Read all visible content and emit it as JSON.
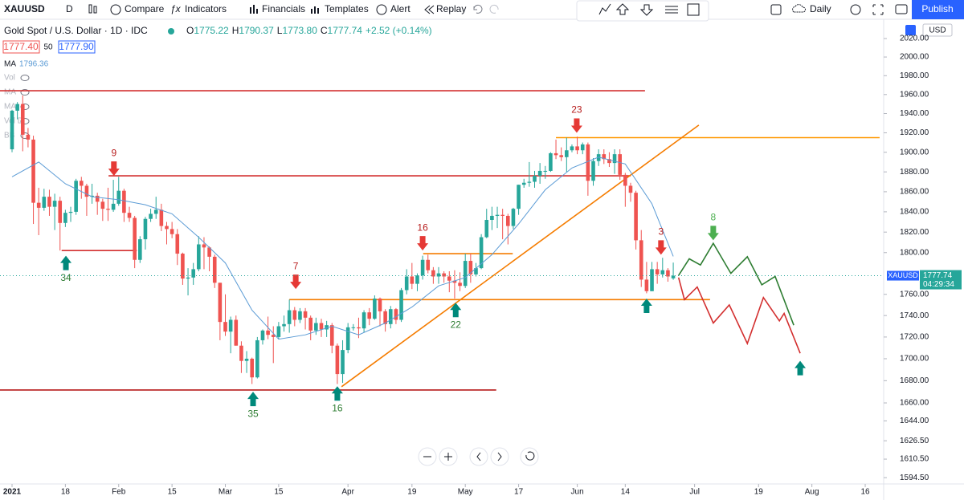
{
  "toolbar": {
    "symbol": "XAUUSD",
    "interval": "D",
    "items": [
      "Compare",
      "Indicators",
      "Financials",
      "Templates",
      "Alert",
      "Replay"
    ],
    "timeframe": "Daily",
    "publish": "Publish"
  },
  "legend": {
    "title": "Gold Spot / U.S. Dollar · 1D · IDC",
    "ohlc": [
      {
        "label": "O",
        "value": "1775.22"
      },
      {
        "label": "H",
        "value": "1790.37"
      },
      {
        "label": "L",
        "value": "1773.80"
      },
      {
        "label": "C",
        "value": "1777.74"
      }
    ],
    "change": "+2.52 (+0.14%)",
    "bid": "1777.40",
    "spread": "50",
    "ask": "1777.90",
    "ma": "MA",
    "ma_value": "1796.36",
    "indicators": [
      "Vol",
      "MA",
      "MA",
      "Vol D",
      "BB"
    ]
  },
  "price_axis": {
    "currency": "USD",
    "symbol_tag": "XAUUSD",
    "price_tag": "1777.74",
    "countdown": "04:29:34"
  },
  "chart_data": {
    "type": "candlestick",
    "log": true,
    "grid": false,
    "up_color": "#26a69a",
    "down_color": "#ef5350",
    "xlim": [
      -2.26,
      163.46
    ],
    "ylim": [
      1589.1,
      2041.1
    ],
    "xticks": [
      {
        "value": 0,
        "label": "2021"
      },
      {
        "value": 10,
        "label": "18"
      },
      {
        "value": 20,
        "label": "Feb"
      },
      {
        "value": 30,
        "label": "15"
      },
      {
        "value": 40,
        "label": "Mar"
      },
      {
        "value": 50,
        "label": "15"
      },
      {
        "value": 63,
        "label": "Apr"
      },
      {
        "value": 75,
        "label": "19"
      },
      {
        "value": 85,
        "label": "May"
      },
      {
        "value": 95,
        "label": "17"
      },
      {
        "value": 106,
        "label": "Jun"
      },
      {
        "value": 115,
        "label": "14"
      },
      {
        "value": 128,
        "label": "Jul"
      },
      {
        "value": 140,
        "label": "19"
      },
      {
        "value": 150,
        "label": "Aug"
      },
      {
        "value": 160,
        "label": "16"
      }
    ],
    "yticks": [
      {
        "value": 2020,
        "label": "2020.00"
      },
      {
        "value": 2000,
        "label": "2000.00"
      },
      {
        "value": 1980,
        "label": "1980.00"
      },
      {
        "value": 1960,
        "label": "1960.00"
      },
      {
        "value": 1940,
        "label": "1940.00"
      },
      {
        "value": 1920,
        "label": "1920.00"
      },
      {
        "value": 1900,
        "label": "1900.00"
      },
      {
        "value": 1880,
        "label": "1880.00"
      },
      {
        "value": 1860,
        "label": "1860.00"
      },
      {
        "value": 1840,
        "label": "1840.00"
      },
      {
        "value": 1820,
        "label": "1820.00"
      },
      {
        "value": 1800,
        "label": "1800.00"
      },
      {
        "value": 1760,
        "label": "1760.00"
      },
      {
        "value": 1740,
        "label": "1740.00"
      },
      {
        "value": 1720,
        "label": "1720.00"
      },
      {
        "value": 1700,
        "label": "1700.00"
      },
      {
        "value": 1680,
        "label": "1680.00"
      },
      {
        "value": 1660,
        "label": "1660.00"
      },
      {
        "value": 1644,
        "label": "1644.00"
      },
      {
        "value": 1626.5,
        "label": "1626.50"
      },
      {
        "value": 1610.5,
        "label": "1610.50"
      },
      {
        "value": 1594.5,
        "label": "1594.50"
      }
    ],
    "x": [
      0,
      1,
      2,
      3,
      4,
      5,
      6,
      7,
      8,
      9,
      10,
      11,
      12,
      13,
      14,
      15,
      16,
      17,
      18,
      19,
      20,
      21,
      22,
      23,
      24,
      25,
      26,
      27,
      28,
      29,
      30,
      31,
      32,
      33,
      34,
      35,
      36,
      37,
      38,
      39,
      40,
      41,
      42,
      43,
      44,
      45,
      46,
      47,
      48,
      49,
      50,
      51,
      52,
      53,
      54,
      55,
      56,
      57,
      58,
      59,
      60,
      61,
      62,
      63,
      64,
      65,
      66,
      67,
      68,
      69,
      70,
      71,
      72,
      73,
      74,
      75,
      76,
      77,
      78,
      79,
      80,
      81,
      82,
      83,
      84,
      85,
      86,
      87,
      88,
      89,
      90,
      91,
      92,
      93,
      94,
      95,
      96,
      97,
      98,
      99,
      100,
      101,
      102,
      103,
      104,
      105,
      106,
      107,
      108,
      109,
      110,
      111,
      112,
      113,
      114,
      115,
      116,
      117,
      118,
      119,
      120,
      121,
      122,
      123,
      124
    ],
    "open": [
      1903,
      1943,
      1950,
      1918,
      1913,
      1849,
      1844,
      1855,
      1845,
      1851,
      1829,
      1839,
      1840,
      1871,
      1866,
      1855,
      1856,
      1850,
      1843,
      1842,
      1848,
      1861,
      1839,
      1834,
      1793,
      1813,
      1833,
      1838,
      1842,
      1826,
      1823,
      1818,
      1799,
      1775,
      1776,
      1784,
      1808,
      1805,
      1796,
      1771,
      1734,
      1725,
      1736,
      1712,
      1698,
      1700,
      1683,
      1717,
      1726,
      1722,
      1720,
      1730,
      1732,
      1745,
      1736,
      1744,
      1738,
      1726,
      1733,
      1727,
      1731,
      1712,
      1686,
      1708,
      1729,
      1729,
      1728,
      1743,
      1737,
      1756,
      1744,
      1732,
      1746,
      1736,
      1764,
      1777,
      1770,
      1778,
      1793,
      1783,
      1777,
      1780,
      1777,
      1773,
      1771,
      1768,
      1792,
      1779,
      1785,
      1815,
      1832,
      1836,
      1837,
      1836,
      1826,
      1843,
      1867,
      1869,
      1870,
      1876,
      1881,
      1881,
      1899,
      1897,
      1895,
      1902,
      1906,
      1902,
      1908,
      1871,
      1891,
      1898,
      1893,
      1889,
      1898,
      1877,
      1866,
      1859,
      1812,
      1774,
      1763,
      1784,
      1779,
      1783,
      1775.22
    ],
    "high": [
      1944,
      1952,
      1959,
      1925,
      1917,
      1864,
      1863,
      1862,
      1858,
      1855,
      1842,
      1845,
      1873,
      1875,
      1868,
      1868,
      1859,
      1853,
      1864,
      1872,
      1875,
      1863,
      1845,
      1836,
      1816,
      1835,
      1843,
      1855,
      1848,
      1830,
      1830,
      1823,
      1800,
      1785,
      1790,
      1816,
      1815,
      1806,
      1798,
      1771,
      1760,
      1739,
      1740,
      1716,
      1707,
      1701,
      1720,
      1727,
      1739,
      1730,
      1734,
      1740,
      1755,
      1748,
      1747,
      1747,
      1740,
      1738,
      1737,
      1735,
      1733,
      1714,
      1717,
      1733,
      1732,
      1738,
      1745,
      1747,
      1759,
      1757,
      1746,
      1749,
      1747,
      1766,
      1784,
      1790,
      1780,
      1797,
      1798,
      1786,
      1786,
      1782,
      1782,
      1783,
      1781,
      1799,
      1799,
      1790,
      1818,
      1843,
      1845,
      1845,
      1843,
      1838,
      1844,
      1867,
      1873,
      1890,
      1881,
      1889,
      1886,
      1900,
      1913,
      1905,
      1915,
      1908,
      1916,
      1910,
      1910,
      1894,
      1903,
      1903,
      1900,
      1903,
      1903,
      1879,
      1869,
      1861,
      1822,
      1791,
      1791,
      1791,
      1795,
      1785,
      1790.37
    ],
    "low": [
      1900,
      1934,
      1901,
      1905,
      1828,
      1817,
      1841,
      1836,
      1822,
      1802,
      1825,
      1830,
      1837,
      1853,
      1836,
      1848,
      1837,
      1831,
      1831,
      1840,
      1846,
      1830,
      1830,
      1785,
      1790,
      1803,
      1830,
      1833,
      1821,
      1808,
      1814,
      1788,
      1769,
      1759,
      1769,
      1782,
      1784,
      1782,
      1766,
      1717,
      1721,
      1705,
      1712,
      1687,
      1687,
      1677,
      1682,
      1713,
      1718,
      1696,
      1718,
      1725,
      1724,
      1730,
      1733,
      1727,
      1717,
      1722,
      1720,
      1720,
      1705,
      1677,
      1678,
      1705,
      1726,
      1719,
      1724,
      1731,
      1736,
      1730,
      1725,
      1728,
      1732,
      1734,
      1760,
      1765,
      1763,
      1774,
      1780,
      1770,
      1770,
      1771,
      1762,
      1756,
      1763,
      1766,
      1771,
      1777,
      1784,
      1814,
      1822,
      1824,
      1813,
      1808,
      1823,
      1837,
      1864,
      1865,
      1864,
      1868,
      1873,
      1880,
      1893,
      1891,
      1880,
      1900,
      1898,
      1898,
      1856,
      1866,
      1886,
      1888,
      1885,
      1878,
      1872,
      1845,
      1850,
      1803,
      1767,
      1761,
      1763,
      1770,
      1776,
      1772,
      1773.8
    ],
    "close": [
      1943,
      1950,
      1918,
      1913,
      1849,
      1844,
      1855,
      1845,
      1851,
      1829,
      1839,
      1840,
      1871,
      1866,
      1855,
      1856,
      1850,
      1843,
      1842,
      1848,
      1861,
      1839,
      1834,
      1793,
      1813,
      1833,
      1838,
      1842,
      1826,
      1823,
      1818,
      1799,
      1775,
      1776,
      1784,
      1808,
      1805,
      1796,
      1771,
      1734,
      1725,
      1736,
      1712,
      1698,
      1700,
      1683,
      1717,
      1726,
      1722,
      1720,
      1730,
      1732,
      1745,
      1736,
      1744,
      1738,
      1726,
      1733,
      1727,
      1731,
      1712,
      1686,
      1708,
      1729,
      1729,
      1728,
      1743,
      1737,
      1756,
      1744,
      1732,
      1746,
      1736,
      1764,
      1777,
      1770,
      1778,
      1793,
      1783,
      1777,
      1780,
      1777,
      1773,
      1771,
      1768,
      1792,
      1779,
      1785,
      1815,
      1832,
      1836,
      1837,
      1836,
      1826,
      1843,
      1867,
      1869,
      1870,
      1876,
      1881,
      1881,
      1899,
      1897,
      1895,
      1902,
      1906,
      1902,
      1908,
      1871,
      1891,
      1898,
      1893,
      1889,
      1898,
      1877,
      1866,
      1859,
      1812,
      1774,
      1763,
      1784,
      1779,
      1783,
      1777,
      1777.74
    ],
    "ma": {
      "name": "MA",
      "color": "#5b9bd5",
      "x": [
        0,
        5,
        10,
        15,
        20,
        25,
        30,
        35,
        40,
        45,
        50,
        55,
        60,
        65,
        70,
        75,
        80,
        85,
        90,
        95,
        100,
        105,
        110,
        115,
        120,
        124
      ],
      "values": [
        1875,
        1890,
        1868,
        1855,
        1852,
        1847,
        1838,
        1815,
        1790,
        1745,
        1718,
        1722,
        1730,
        1722,
        1733,
        1748,
        1768,
        1776,
        1798,
        1828,
        1862,
        1884,
        1895,
        1888,
        1848,
        1796.36
      ]
    },
    "hlines": [
      {
        "price": 1964,
        "x": [
          -2.26,
          118.7
        ],
        "color": "#d32f2f"
      },
      {
        "price": 1876,
        "x": [
          18.1,
          116
        ],
        "color": "#d32f2f"
      },
      {
        "price": 1802,
        "x": [
          9.3,
          23.4
        ],
        "color": "#d32f2f"
      },
      {
        "price": 1671.6,
        "x": [
          -2.26,
          90.8
        ],
        "color": "#b71c1c"
      },
      {
        "price": 1755,
        "x": [
          52,
          130.9
        ],
        "color": "#f57c00"
      },
      {
        "price": 1799,
        "x": [
          77.1,
          93.9
        ],
        "color": "#f57c00"
      },
      {
        "price": 1915,
        "x": [
          102,
          162.7
        ],
        "color": "#ff9800"
      }
    ],
    "trendlines": [
      {
        "x": [
          61.8,
          128.8
        ],
        "price": [
          1674.6,
          1928
        ],
        "color": "#f57c00"
      }
    ],
    "projections": [
      {
        "color": "#2e7d32",
        "x": [
          125,
          127,
          129.1,
          131.5,
          134.8,
          137.9,
          140.6,
          143.1,
          146.6
        ],
        "price": [
          1778,
          1794,
          1788,
          1809,
          1780,
          1796,
          1769,
          1777,
          1731
        ]
      },
      {
        "color": "#d32f2f",
        "x": [
          125,
          126.1,
          128.5,
          131.5,
          134.5,
          137.9,
          140.9,
          143.9,
          144.8,
          147.8
        ],
        "price": [
          1776,
          1755,
          1767,
          1733,
          1750,
          1714,
          1757,
          1735,
          1742,
          1705
        ]
      }
    ],
    "arrows": [
      {
        "label": "9",
        "x": 19.1,
        "price": 1876,
        "direction": "down",
        "color": "#e53935",
        "label_color": "#b71c1c"
      },
      {
        "label": "34",
        "x": 10.1,
        "price": 1797,
        "direction": "up",
        "color": "#00897b",
        "label_color": "#2e7d32"
      },
      {
        "label": "7",
        "x": 53.2,
        "price": 1765,
        "direction": "down",
        "color": "#e53935",
        "label_color": "#b71c1c"
      },
      {
        "label": "35",
        "x": 45.2,
        "price": 1670,
        "direction": "up",
        "color": "#00897b",
        "label_color": "#2e7d32"
      },
      {
        "label": "16",
        "x": 61,
        "price": 1675,
        "direction": "up",
        "color": "#00897b",
        "label_color": "#2e7d32"
      },
      {
        "label": "16",
        "x": 77,
        "price": 1802,
        "direction": "down",
        "color": "#e53935",
        "label_color": "#b71c1c"
      },
      {
        "label": "22",
        "x": 83.2,
        "price": 1752,
        "direction": "up",
        "color": "#00897b",
        "label_color": "#2e7d32"
      },
      {
        "label": "23",
        "x": 105.9,
        "price": 1920,
        "direction": "down",
        "color": "#e53935",
        "label_color": "#b71c1c"
      },
      {
        "label": "3",
        "x": 121.7,
        "price": 1798,
        "direction": "down",
        "color": "#e53935",
        "label_color": "#b71c1c"
      },
      {
        "x": 119,
        "price": 1756,
        "direction": "up",
        "color": "#00897b"
      },
      {
        "x": 147.8,
        "price": 1698,
        "direction": "up",
        "color": "#00897b"
      },
      {
        "label": "8",
        "x": 131.5,
        "price": 1812,
        "direction": "down",
        "color": "#4caf50",
        "label_color": "#4caf50"
      }
    ]
  }
}
